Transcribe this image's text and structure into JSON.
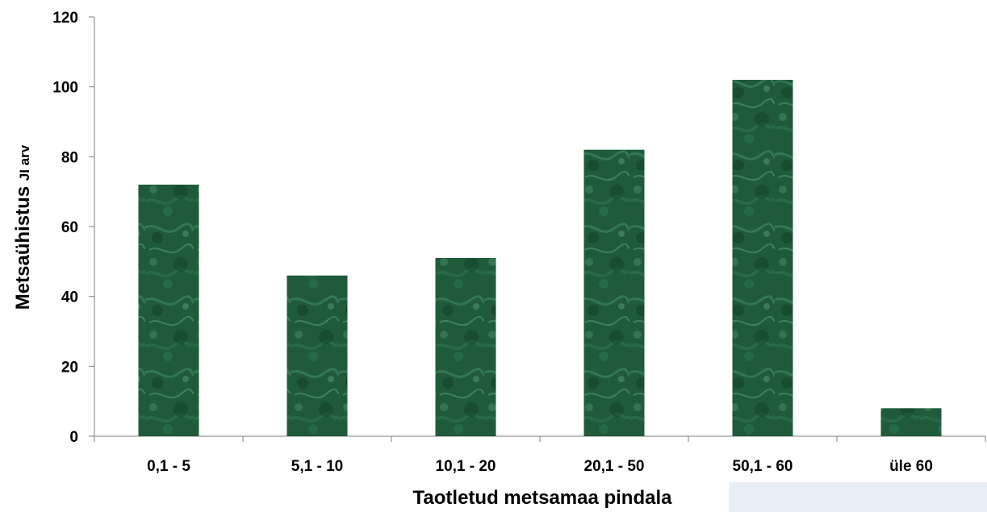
{
  "chart_data": {
    "type": "bar",
    "categories": [
      "0,1 - 5",
      "5,1 - 10",
      "10,1 - 20",
      "20,1 - 50",
      "50,1 - 60",
      "üle 60"
    ],
    "values": [
      72,
      46,
      51,
      82,
      102,
      8
    ],
    "xlabel": "Taotletud metsamaa pindala",
    "ylabel_main": "Metsaühistus ",
    "ylabel_sub": "JI arv",
    "ylim": [
      0,
      120
    ],
    "yticks": [
      0,
      20,
      40,
      60,
      80,
      100,
      120
    ],
    "grid": false,
    "legend": "none",
    "colors": {
      "bar_base": "#1f5a3a",
      "bar_dark": "#0f3a22",
      "bar_light": "#4f9a78",
      "axis": "#7f7f7f"
    }
  }
}
